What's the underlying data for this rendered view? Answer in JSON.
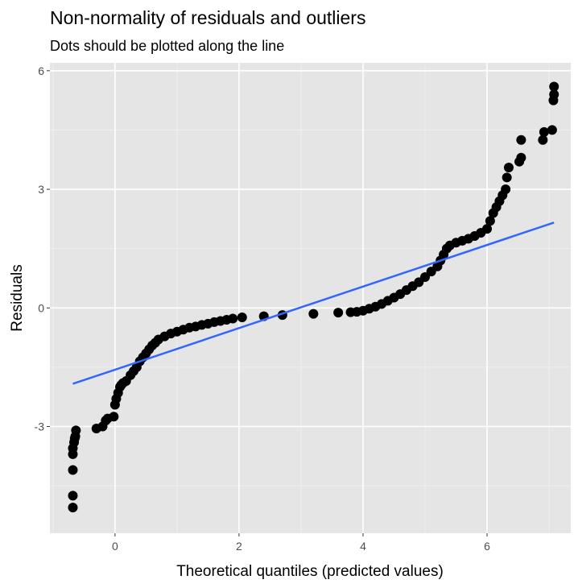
{
  "chart_data": {
    "type": "scatter",
    "title": "Non-normality of residuals and outliers",
    "subtitle": "Dots should be plotted along the line",
    "xlabel": "Theoretical quantiles (predicted values)",
    "ylabel": "Residuals",
    "xlim": [
      -1.05,
      7.35
    ],
    "ylim": [
      -5.7,
      6.2
    ],
    "x_ticks": [
      0,
      2,
      4,
      6
    ],
    "x_tick_labels": [
      "0",
      "2",
      "4",
      "6"
    ],
    "y_ticks": [
      -3,
      0,
      3,
      6
    ],
    "y_tick_labels": [
      "-3",
      "0",
      "3",
      "6"
    ],
    "grid": true,
    "background_color": "#e5e5e5",
    "point_color": "#000000",
    "line_color": "#3366ff",
    "fit_line": {
      "x": [
        -0.68,
        7.08
      ],
      "y": [
        -1.92,
        2.16
      ]
    },
    "series": [
      {
        "x": [
          -0.68,
          -0.68,
          -0.68,
          -0.68,
          -0.68,
          -0.66,
          -0.65,
          -0.64,
          -0.63,
          -0.3,
          -0.2,
          -0.15,
          -0.12,
          -0.02,
          0.0,
          0.02,
          0.05,
          0.08,
          0.1,
          0.13,
          0.18,
          0.25,
          0.3,
          0.35,
          0.4,
          0.45,
          0.5,
          0.55,
          0.6,
          0.65,
          0.7,
          0.8,
          0.9,
          1.0,
          1.1,
          1.2,
          1.3,
          1.4,
          1.5,
          1.6,
          1.7,
          1.8,
          1.9,
          2.05,
          2.4,
          2.7,
          3.2,
          3.6,
          3.8,
          3.9,
          4.0,
          4.1,
          4.2,
          4.3,
          4.4,
          4.5,
          4.6,
          4.7,
          4.8,
          4.9,
          5.0,
          5.1,
          5.2,
          5.25,
          5.3,
          5.35,
          5.4,
          5.5,
          5.6,
          5.7,
          5.8,
          5.9,
          6.0,
          6.05,
          6.1,
          6.15,
          6.2,
          6.25,
          6.3,
          6.32,
          6.35,
          6.52,
          6.55,
          6.55,
          6.9,
          6.92,
          7.05,
          7.07,
          7.08,
          7.08
        ],
        "y": [
          -5.05,
          -4.75,
          -4.1,
          -3.7,
          -3.55,
          -3.4,
          -3.3,
          -3.25,
          -3.1,
          -3.05,
          -3.0,
          -2.85,
          -2.8,
          -2.75,
          -2.45,
          -2.3,
          -2.15,
          -2.0,
          -1.95,
          -1.9,
          -1.85,
          -1.7,
          -1.6,
          -1.5,
          -1.35,
          -1.25,
          -1.15,
          -1.05,
          -0.95,
          -0.88,
          -0.8,
          -0.72,
          -0.65,
          -0.6,
          -0.55,
          -0.5,
          -0.47,
          -0.43,
          -0.4,
          -0.36,
          -0.33,
          -0.3,
          -0.27,
          -0.24,
          -0.21,
          -0.18,
          -0.15,
          -0.12,
          -0.11,
          -0.1,
          -0.07,
          -0.02,
          0.03,
          0.1,
          0.18,
          0.26,
          0.35,
          0.45,
          0.55,
          0.65,
          0.78,
          0.92,
          1.05,
          1.2,
          1.35,
          1.5,
          1.58,
          1.65,
          1.7,
          1.75,
          1.82,
          1.9,
          2.0,
          2.2,
          2.4,
          2.55,
          2.7,
          2.85,
          3.0,
          3.3,
          3.55,
          3.7,
          3.8,
          4.25,
          4.25,
          4.45,
          4.5,
          5.25,
          5.4,
          5.6
        ]
      }
    ]
  }
}
